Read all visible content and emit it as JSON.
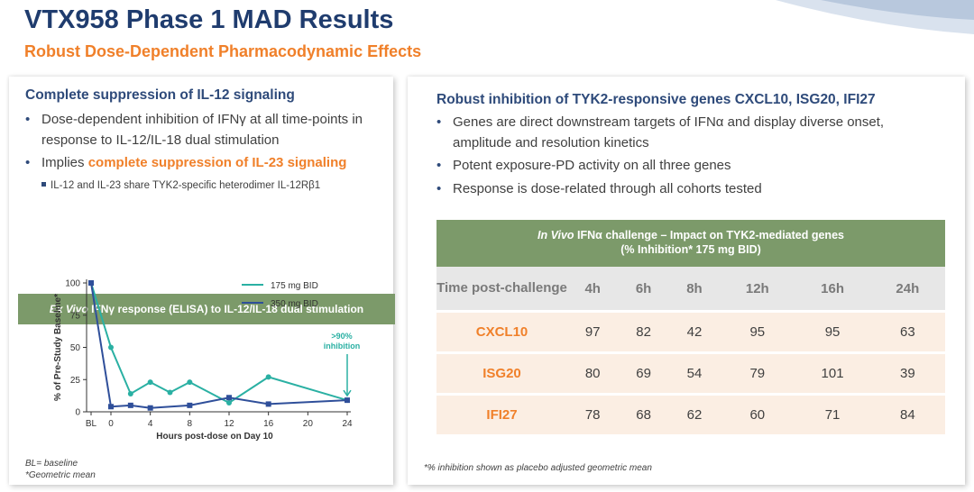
{
  "title": "VTX958 Phase 1 MAD Results",
  "subtitle": "Robust Dose-Dependent Pharmacodynamic Effects",
  "left_panel": {
    "heading": "Complete suppression of IL-12 signaling",
    "bullet1": "Dose-dependent inhibition of IFNγ at all time-points in response to IL-12/IL-18 dual stimulation",
    "bullet2_prefix": "Implies ",
    "bullet2_highlight": "complete suppression of IL-23 signaling",
    "sub_bullet": "IL-12 and IL-23 share TYK2-specific heterodimer IL-12Rβ1",
    "chart_header_italic": "Ex Vivo",
    "chart_header_rest": " IFNγ response (ELISA) to IL-12/IL-18 dual stimulation",
    "footnote1": "BL= baseline",
    "footnote2": "*Geometric mean"
  },
  "chart_data": {
    "type": "line",
    "title": "Ex Vivo IFNγ response (ELISA) to IL-12/IL-18 dual stimulation",
    "xlabel": "Hours post-dose on Day 10",
    "ylabel": "% of Pre-Study Baseline*",
    "x_tick_labels": [
      "BL",
      "0",
      "4",
      "8",
      "12",
      "16",
      "20",
      "24"
    ],
    "y_ticks": [
      "0",
      "25",
      "50",
      "75",
      "100"
    ],
    "ylim": [
      0,
      100
    ],
    "xlim": [
      -2,
      24
    ],
    "series": [
      {
        "name": "175 mg BID",
        "color": "#2ab0a3",
        "x": [
          -2,
          0,
          2,
          4,
          6,
          8,
          12,
          16,
          24
        ],
        "y": [
          100,
          50,
          14,
          23,
          15,
          23,
          7,
          27,
          9
        ]
      },
      {
        "name": "350 mg BID",
        "color": "#2f4f9a",
        "x": [
          -2,
          0,
          2,
          4,
          8,
          12,
          16,
          24
        ],
        "y": [
          100,
          4,
          5,
          3,
          5,
          11,
          6,
          9
        ]
      }
    ],
    "annotation": {
      "line1": ">90%",
      "line2": "inhibition",
      "x": 24,
      "y": 9
    }
  },
  "right_panel": {
    "heading": "Robust inhibition of TYK2-responsive genes CXCL10, ISG20, IFI27",
    "bullets": [
      "Genes are direct downstream targets of IFNα and display diverse onset, amplitude and resolution kinetics",
      "Potent exposure-PD activity on all three genes",
      "Response is dose-related through all cohorts tested"
    ],
    "table_title_italic": "In Vivo",
    "table_title_rest": " IFNα challenge – Impact on TYK2-mediated genes",
    "table_subtitle": "(% Inhibition* 175 mg BID)",
    "row_header": "Time post-challenge",
    "columns": [
      "4h",
      "6h",
      "8h",
      "12h",
      "16h",
      "24h"
    ],
    "rows": [
      {
        "gene": "CXCL10",
        "values": [
          "97",
          "82",
          "42",
          "95",
          "95",
          "63"
        ]
      },
      {
        "gene": "ISG20",
        "values": [
          "80",
          "69",
          "54",
          "79",
          "101",
          "39"
        ]
      },
      {
        "gene": "IFI27",
        "values": [
          "78",
          "68",
          "62",
          "60",
          "71",
          "84"
        ]
      }
    ],
    "footnote": "*% inhibition shown as placebo adjusted geometric mean"
  }
}
